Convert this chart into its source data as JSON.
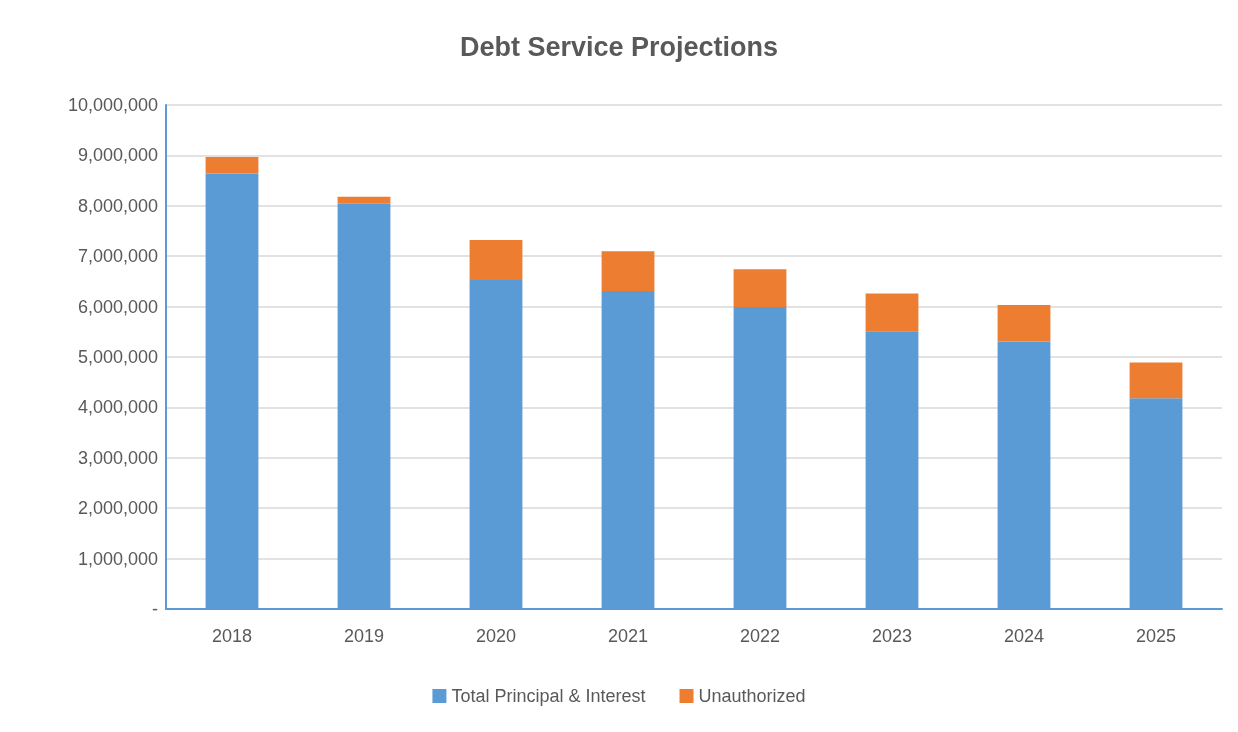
{
  "chart_data": {
    "type": "bar",
    "title": "Debt Service Projections",
    "categories": [
      "2018",
      "2019",
      "2020",
      "2021",
      "2022",
      "2023",
      "2024",
      "2025"
    ],
    "stacked": true,
    "series": [
      {
        "name": "Total Principal & Interest",
        "color": "#5b9bd5",
        "values": [
          8640000,
          8040000,
          6530000,
          6310000,
          5990000,
          5510000,
          5310000,
          4180000
        ]
      },
      {
        "name": "Unauthorized",
        "color": "#ed7d31",
        "values": [
          330000,
          140000,
          790000,
          790000,
          750000,
          750000,
          720000,
          710000
        ]
      }
    ],
    "ylim": [
      0,
      10000000
    ],
    "yticks": [
      {
        "value": 0,
        "label": "-"
      },
      {
        "value": 1000000,
        "label": "1,000,000"
      },
      {
        "value": 2000000,
        "label": "2,000,000"
      },
      {
        "value": 3000000,
        "label": "3,000,000"
      },
      {
        "value": 4000000,
        "label": "4,000,000"
      },
      {
        "value": 5000000,
        "label": "5,000,000"
      },
      {
        "value": 6000000,
        "label": "6,000,000"
      },
      {
        "value": 7000000,
        "label": "7,000,000"
      },
      {
        "value": 8000000,
        "label": "8,000,000"
      },
      {
        "value": 9000000,
        "label": "9,000,000"
      },
      {
        "value": 10000000,
        "label": "10,000,000"
      }
    ],
    "grid": "y",
    "legend": "bottom"
  }
}
